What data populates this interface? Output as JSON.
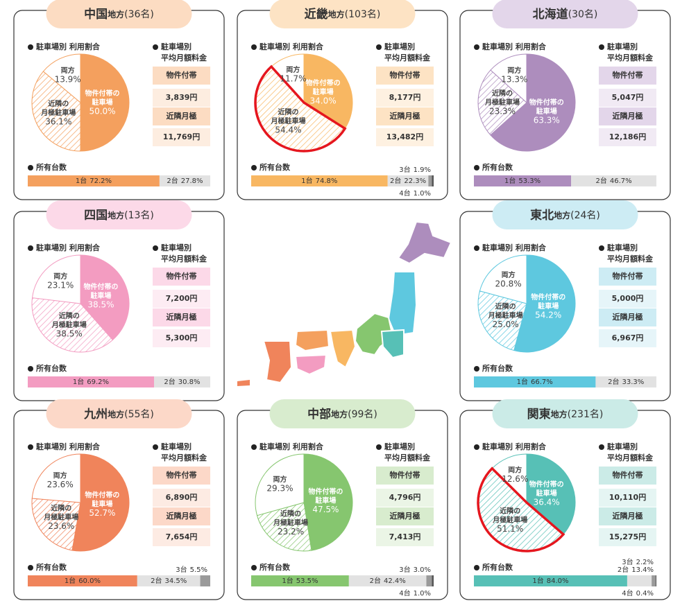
{
  "common": {
    "usage": "駐車場別 利用割合",
    "fee_title": [
      "駐車場別",
      "平均月額料金"
    ],
    "fee_rows": [
      "物件付帯",
      "近隣月極"
    ],
    "owned": "所有台数",
    "slices": [
      [
        "物件付帯の",
        "駐車場"
      ],
      [
        "近隣の",
        "月極駐車場"
      ],
      [
        "両方"
      ]
    ]
  },
  "regions": [
    {
      "name": "中国",
      "suffix": "地方",
      "count": "(36名)",
      "color": "#f4a05e",
      "light": "#fcdcc2",
      "pie": {
        "values": [
          50.0,
          36.1,
          13.9
        ],
        "value_labels": [
          "50.0%",
          "36.1%",
          "13.9%"
        ]
      },
      "fees": [
        "3,839円",
        "11,769円"
      ],
      "cars": {
        "labels": [
          "1台",
          "2台"
        ],
        "values": [
          72.2,
          27.8
        ],
        "value_labels": [
          "72.2%",
          "27.8%"
        ]
      }
    },
    {
      "name": "近畿",
      "suffix": "地方",
      "count": "(103名)",
      "color": "#f8b762",
      "light": "#fde3c4",
      "highlight": 1,
      "pie": {
        "values": [
          34.0,
          54.4,
          11.7
        ],
        "value_labels": [
          "34.0%",
          "54.4%",
          "11.7%"
        ]
      },
      "fees": [
        "8,177円",
        "13,482円"
      ],
      "cars": {
        "labels": [
          "1台",
          "2台",
          "3台",
          "4台"
        ],
        "values": [
          74.8,
          22.3,
          1.9,
          1.0
        ],
        "value_labels": [
          "74.8%",
          "22.3%",
          "1.9%",
          "1.0%"
        ]
      }
    },
    {
      "name": "北海道",
      "count": "(30名)",
      "color": "#ad8dbd",
      "light": "#e3d6ea",
      "pie": {
        "values": [
          63.3,
          23.3,
          13.3
        ],
        "value_labels": [
          "63.3%",
          "23.3%",
          "13.3%"
        ]
      },
      "fees": [
        "5,047円",
        "12,186円"
      ],
      "cars": {
        "labels": [
          "1台",
          "2台"
        ],
        "values": [
          53.3,
          46.7
        ],
        "value_labels": [
          "53.3%",
          "46.7%"
        ]
      }
    },
    {
      "name": "四国",
      "suffix": "地方",
      "count": "(13名)",
      "color": "#f39cc1",
      "light": "#fcd9e8",
      "pie": {
        "values": [
          38.5,
          38.5,
          23.1
        ],
        "value_labels": [
          "38.5%",
          "38.5%",
          "23.1%"
        ]
      },
      "fees": [
        "7,200円",
        "5,300円"
      ],
      "cars": {
        "labels": [
          "1台",
          "2台"
        ],
        "values": [
          69.2,
          30.8
        ],
        "value_labels": [
          "69.2%",
          "30.8%"
        ]
      }
    },
    {
      "name": "東北",
      "suffix": "地方",
      "count": "(24名)",
      "color": "#5ec8df",
      "light": "#cdecf4",
      "pie": {
        "values": [
          54.2,
          25.0,
          20.8
        ],
        "value_labels": [
          "54.2%",
          "25.0%",
          "20.8%"
        ]
      },
      "fees": [
        "5,000円",
        "6,967円"
      ],
      "cars": {
        "labels": [
          "1台",
          "2台"
        ],
        "values": [
          66.7,
          33.3
        ],
        "value_labels": [
          "66.7%",
          "33.3%"
        ]
      }
    },
    {
      "name": "九州",
      "suffix": "地方",
      "count": "(55名)",
      "color": "#f0845b",
      "light": "#fcd8c8",
      "pie": {
        "values": [
          52.7,
          23.6,
          23.6
        ],
        "value_labels": [
          "52.7%",
          "23.6%",
          "23.6%"
        ]
      },
      "fees": [
        "6,890円",
        "7,654円"
      ],
      "cars": {
        "labels": [
          "1台",
          "2台",
          "3台"
        ],
        "values": [
          60.0,
          34.5,
          5.5
        ],
        "value_labels": [
          "60.0%",
          "34.5%",
          "5.5%"
        ]
      }
    },
    {
      "name": "中部",
      "suffix": "地方",
      "count": "(99名)",
      "color": "#86c66f",
      "light": "#d8ecce",
      "pie": {
        "values": [
          47.5,
          23.2,
          29.3
        ],
        "value_labels": [
          "47.5%",
          "23.2%",
          "29.3%"
        ]
      },
      "fees": [
        "4,796円",
        "7,413円"
      ],
      "cars": {
        "labels": [
          "1台",
          "2台",
          "3台",
          "4台"
        ],
        "values": [
          53.5,
          42.4,
          3.0,
          1.0
        ],
        "value_labels": [
          "53.5%",
          "42.4%",
          "3.0%",
          "1.0%"
        ]
      }
    },
    {
      "name": "関東",
      "suffix": "地方",
      "count": "(231名)",
      "color": "#57c0b6",
      "light": "#cbebe7",
      "highlight": 1,
      "pie": {
        "values": [
          36.4,
          51.1,
          12.6
        ],
        "value_labels": [
          "36.4%",
          "51.1%",
          "12.6%"
        ]
      },
      "fees": [
        "10,110円",
        "15,275円"
      ],
      "cars": {
        "labels": [
          "1台",
          "2台",
          "3台",
          "4台"
        ],
        "values": [
          84.0,
          13.4,
          2.2,
          0.4
        ],
        "value_labels": [
          "84.0%",
          "13.4%",
          "2.2%",
          "0.4%"
        ]
      }
    }
  ]
}
